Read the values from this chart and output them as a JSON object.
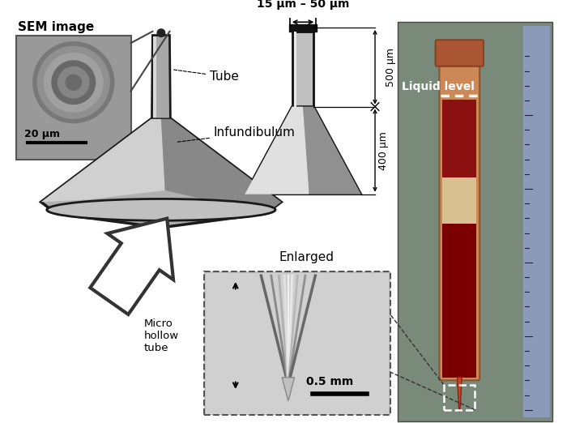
{
  "sem_label": "SEM image",
  "sem_scale": "20 μm",
  "tube_label": "Tube",
  "infundibulum_label": "Infundibulum",
  "dim_label1": "15 μm – 50 μm",
  "dim_500": "500 μm",
  "dim_400": "400 μm",
  "enlarged_label": "Enlarged",
  "scale_label": "0.5 mm",
  "micro_label": "Micro\nhollow\ntube",
  "liquid_label": "Liquid level",
  "bg_color": "#ffffff",
  "funnel_body_color": "#b8b8b8",
  "funnel_highlight": "#d8d8d8",
  "funnel_shadow": "#888888",
  "funnel_edge": "#1a1a1a",
  "tube_color": "#a0a0a0",
  "sem_bg": "#909090",
  "photo_bg_top": "#5a7a9a",
  "photo_bg_bot": "#6a5a4a",
  "inset_bg": "#b8b8b8"
}
